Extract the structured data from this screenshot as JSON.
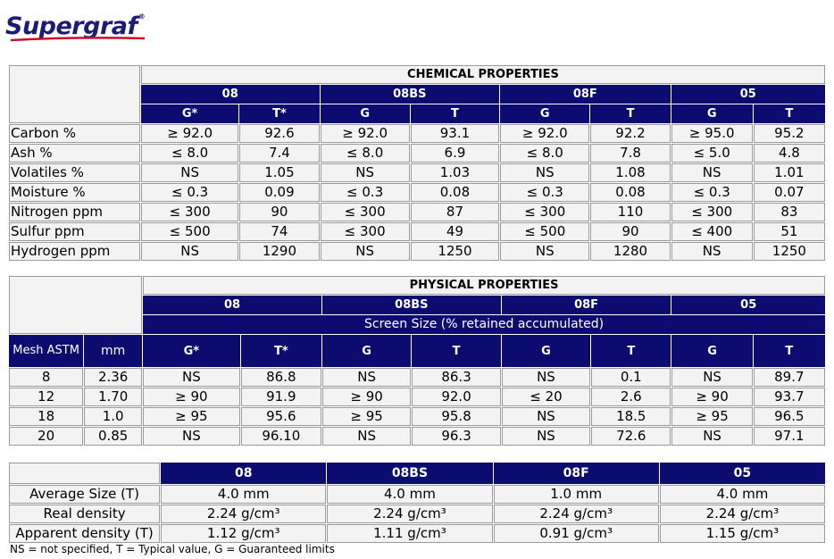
{
  "brand": {
    "name": "Supergraf",
    "mark": "®"
  },
  "chemical": {
    "title": "CHEMICAL PROPERTIES",
    "grades": [
      "08",
      "08BS",
      "08F",
      "05"
    ],
    "subheads": [
      "G*",
      "T*",
      "G",
      "T",
      "G",
      "T",
      "G",
      "T"
    ],
    "rows": [
      {
        "label": "Carbon %",
        "values": [
          "≥ 92.0",
          "92.6",
          "≥ 92.0",
          "93.1",
          "≥ 92.0",
          "92.2",
          "≥ 95.0",
          "95.2"
        ]
      },
      {
        "label": "Ash %",
        "values": [
          "≤ 8.0",
          "7.4",
          "≤ 8.0",
          "6.9",
          "≤ 8.0",
          "7.8",
          "≤ 5.0",
          "4.8"
        ]
      },
      {
        "label": "Volatiles %",
        "values": [
          "NS",
          "1.05",
          "NS",
          "1.03",
          "NS",
          "1.08",
          "NS",
          "1.01"
        ]
      },
      {
        "label": "Moisture %",
        "values": [
          "≤ 0.3",
          "0.09",
          "≤ 0.3",
          "0.08",
          "≤ 0.3",
          "0.08",
          "≤ 0.3",
          "0.07"
        ]
      },
      {
        "label": "Nitrogen ppm",
        "values": [
          "≤ 300",
          "90",
          "≤ 300",
          "87",
          "≤ 300",
          "110",
          "≤ 300",
          "83"
        ]
      },
      {
        "label": "Sulfur ppm",
        "values": [
          "≤ 500",
          "74",
          "≤ 300",
          "49",
          "≤ 500",
          "90",
          "≤ 400",
          "51"
        ]
      },
      {
        "label": "Hydrogen ppm",
        "values": [
          "NS",
          "1290",
          "NS",
          "1250",
          "NS",
          "1280",
          "NS",
          "1250"
        ]
      }
    ]
  },
  "physical": {
    "title": "PHYSICAL PROPERTIES",
    "grades": [
      "08",
      "08BS",
      "08F",
      "05"
    ],
    "screen_caption": "Screen Size (% retained accumulated)",
    "mesh_head": "Mesh ASTM",
    "mm_head": "mm",
    "subheads": [
      "G*",
      "T*",
      "G",
      "T",
      "G",
      "T",
      "G",
      "T"
    ],
    "rows": [
      {
        "mesh": "8",
        "mm": "2.36",
        "values": [
          "NS",
          "86.8",
          "NS",
          "86.3",
          "NS",
          "0.1",
          "NS",
          "89.7"
        ]
      },
      {
        "mesh": "12",
        "mm": "1.70",
        "values": [
          "≥ 90",
          "91.9",
          "≥ 90",
          "92.0",
          "≤ 20",
          "2.6",
          "≥ 90",
          "93.7"
        ]
      },
      {
        "mesh": "18",
        "mm": "1.0",
        "values": [
          "≥ 95",
          "95.6",
          "≥ 95",
          "95.8",
          "NS",
          "18.5",
          "≥ 95",
          "96.5"
        ]
      },
      {
        "mesh": "20",
        "mm": "0.85",
        "values": [
          "NS",
          "96.10",
          "NS",
          "96.3",
          "NS",
          "72.6",
          "NS",
          "97.1"
        ]
      }
    ]
  },
  "density": {
    "grades": [
      "08",
      "08BS",
      "08F",
      "05"
    ],
    "rows": [
      {
        "label": "Average Size (T)",
        "values": [
          "4.0 mm",
          "4.0 mm",
          "1.0 mm",
          "4.0 mm"
        ]
      },
      {
        "label": "Real density",
        "values": [
          "2.24 g/cm³",
          "2.24 g/cm³",
          "2.24 g/cm³",
          "2.24 g/cm³"
        ]
      },
      {
        "label": "Apparent density (T)",
        "values": [
          "1.12 g/cm³",
          "1.11 g/cm³",
          "0.91 g/cm³",
          "1.15 g/cm³"
        ]
      }
    ]
  },
  "footnote": "NS = not specified, T = Typical value, G = Guaranteed limits",
  "colors": {
    "header_bg": "#0c0c70",
    "cell_bg": "#f3f3f3",
    "logo": "#1c1c78",
    "logo_swoosh": "#c8102e"
  }
}
